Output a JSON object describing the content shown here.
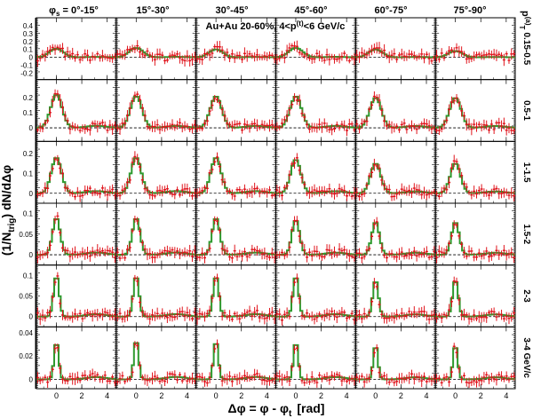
{
  "chart_data": {
    "type": "line",
    "annotation": "Au+Au 20-60%, 4<p",
    "annotation_sup": "(t)",
    "annotation_tail": "<6 GeV/c",
    "xlabel": "Δφ = φ - φ",
    "xlabel_sub": "t",
    "xlabel_tail": "[rad]",
    "ylabel": "(1/N",
    "ylabel_sub": "trig",
    "ylabel_tail": ") dN/dΔφ",
    "pt_axis_label": "p",
    "pt_axis_sup": "(a)",
    "pt_axis_sub": "T",
    "columns": [
      {
        "label_prefix": "φ",
        "label_sub": "s",
        "label": " = 0°-15°"
      },
      {
        "label_prefix": "",
        "label_sub": "",
        "label": "15°-30°"
      },
      {
        "label_prefix": "",
        "label_sub": "",
        "label": "30°-45°"
      },
      {
        "label_prefix": "",
        "label_sub": "",
        "label": "45°-60°"
      },
      {
        "label_prefix": "",
        "label_sub": "",
        "label": "60°-75°"
      },
      {
        "label_prefix": "",
        "label_sub": "",
        "label": "75°-90°"
      }
    ],
    "rows": [
      {
        "label": "0.15-0.5",
        "ylim": [
          -0.28,
          0.5
        ],
        "yticks": [
          -0.2,
          -0.1,
          0,
          0.1,
          0.2,
          0.3,
          0.4
        ],
        "peaks": [
          0.11,
          0.12,
          0.1,
          0.12,
          0.1,
          0.08
        ],
        "width": 0.55
      },
      {
        "label": "0.5-1",
        "ylim": [
          -0.09,
          0.32
        ],
        "yticks": [
          0,
          0.1,
          0.2
        ],
        "peaks": [
          0.22,
          0.21,
          0.21,
          0.21,
          0.2,
          0.2
        ],
        "width": 0.45
      },
      {
        "label": "1-1.5",
        "ylim": [
          -0.05,
          0.26
        ],
        "yticks": [
          0,
          0.1,
          0.2
        ],
        "peaks": [
          0.18,
          0.18,
          0.18,
          0.17,
          0.15,
          0.15
        ],
        "width": 0.4
      },
      {
        "label": "1.5-2",
        "ylim": [
          -0.025,
          0.125
        ],
        "yticks": [
          0,
          0.05,
          0.1
        ],
        "peaks": [
          0.09,
          0.09,
          0.09,
          0.085,
          0.08,
          0.08
        ],
        "width": 0.3
      },
      {
        "label": "2-3",
        "ylim": [
          -0.025,
          0.125
        ],
        "yticks": [
          0,
          0.05,
          0.1
        ],
        "peaks": [
          0.1,
          0.1,
          0.1,
          0.1,
          0.09,
          0.09
        ],
        "width": 0.22
      },
      {
        "label": "3-4 GeV/c",
        "ylim": [
          -0.008,
          0.045
        ],
        "yticks": [
          0,
          0.02,
          0.04
        ],
        "peaks": [
          0.033,
          0.035,
          0.034,
          0.033,
          0.03,
          0.03
        ],
        "width": 0.18
      }
    ],
    "xlim": [
      -1.57,
      4.71
    ],
    "xticks": [
      0,
      2,
      4
    ],
    "series": [
      {
        "style": "histogram",
        "color": "#2e9a2e"
      },
      {
        "style": "points-with-errors",
        "color": "#e0141c"
      }
    ],
    "grid": false
  }
}
